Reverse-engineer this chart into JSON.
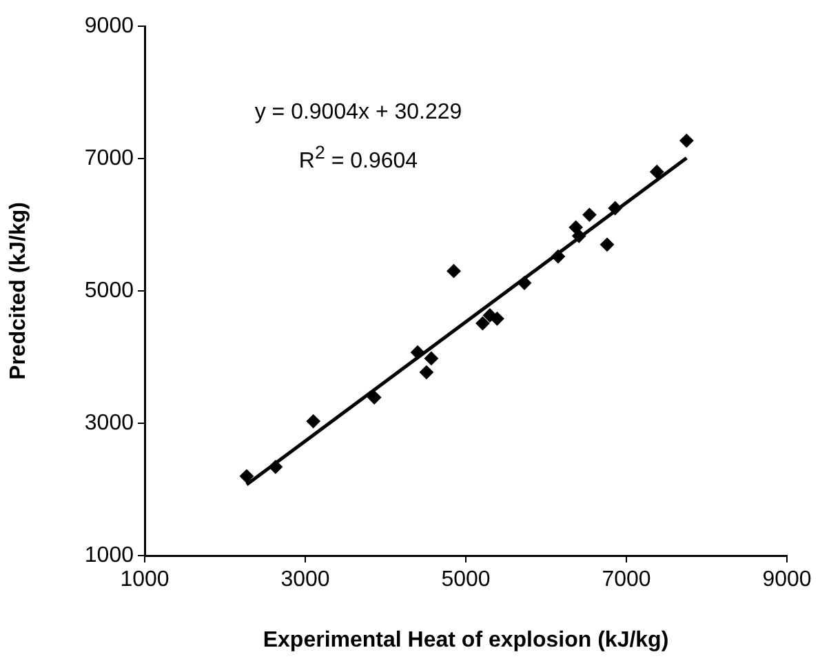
{
  "chart_data": {
    "type": "scatter",
    "xlabel": "Experimental Heat of explosion (kJ/kg)",
    "ylabel": "Predcited (kJ/kg)",
    "xlim": [
      1000,
      9000
    ],
    "xticks": [
      1000,
      3000,
      5000,
      7000,
      9000
    ],
    "ylim": [
      1000,
      9000
    ],
    "yticks": [
      1000,
      3000,
      5000,
      7000,
      9000
    ],
    "grid": false,
    "legend": false,
    "marker": "diamond",
    "annotations": [
      "y = 0.9004x + 30.229",
      "R$^{2}$ = 0.9604"
    ],
    "series": [
      {
        "color": "#000000",
        "x": [
          2270,
          2630,
          3100,
          3860,
          4400,
          4510,
          4570,
          4850,
          5210,
          5300,
          5390,
          5730,
          6150,
          6370,
          6410,
          6540,
          6760,
          6860,
          7380,
          7750
        ],
        "values": [
          2200,
          2340,
          3030,
          3390,
          4070,
          3770,
          3980,
          5300,
          4510,
          4630,
          4580,
          5120,
          5520,
          5960,
          5830,
          6150,
          5700,
          6250,
          6800,
          7270
        ]
      },
      {
        "type": "line",
        "color": "#000000",
        "line_style": "solid",
        "marker": "none",
        "x": [
          2270,
          7750
        ],
        "values": [
          2074,
          7008
        ]
      }
    ]
  }
}
